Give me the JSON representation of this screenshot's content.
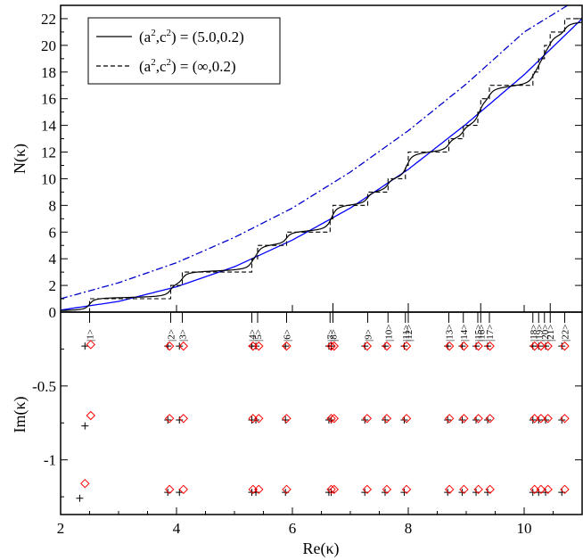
{
  "chart_data": {
    "type": "line",
    "xlabel": "Re(κ)",
    "xlim": [
      2,
      11
    ],
    "x_ticks": [
      2,
      4,
      6,
      8,
      10
    ],
    "x_tick_labels": [
      "2",
      "4",
      "6",
      "8",
      "10"
    ],
    "top_panel": {
      "ylabel": "N(κ)",
      "ylim": [
        0,
        23
      ],
      "y_ticks": [
        0,
        2,
        4,
        6,
        8,
        10,
        12,
        14,
        16,
        18,
        20,
        22
      ],
      "y_tick_labels": [
        "0",
        "2",
        "4",
        "6",
        "8",
        "10",
        "12",
        "14",
        "16",
        "18",
        "20",
        "22"
      ],
      "legend": {
        "position": "top-left",
        "entries": [
          {
            "label_main": "(a",
            "sup1": "2",
            "label_mid": ",c",
            "sup2": "2",
            "label_end": ") = (5.0,0.2)",
            "style": "solid",
            "color": "#000000"
          },
          {
            "label_main": "(a",
            "sup1": "2",
            "label_mid": ",c",
            "sup2": "2",
            "label_end": ") = (∞,0.2)",
            "style": "dashed",
            "color": "#000000"
          }
        ]
      },
      "step_positions": [
        2.5,
        3.9,
        4.1,
        5.3,
        5.4,
        5.9,
        6.65,
        6.7,
        7.3,
        7.65,
        7.95,
        8.0,
        8.7,
        8.95,
        9.2,
        9.25,
        9.4,
        10.15,
        10.25,
        10.35,
        10.45,
        10.7
      ],
      "series": [
        {
          "name": "blue smooth",
          "color": "#0000ff",
          "style": "solid",
          "x": [
            2.0,
            3.0,
            4.0,
            5.0,
            6.0,
            7.0,
            8.0,
            9.0,
            10.0,
            11.0
          ],
          "y": [
            0.15,
            0.8,
            1.9,
            3.4,
            5.4,
            7.8,
            10.7,
            14.1,
            17.8,
            22.0
          ]
        },
        {
          "name": "blue dash-dot",
          "color": "#0000cc",
          "style": "dashdot",
          "x": [
            2.0,
            3.0,
            4.0,
            5.0,
            6.0,
            7.0,
            8.0,
            9.0,
            10.0,
            10.75
          ],
          "y": [
            1.0,
            2.2,
            3.7,
            5.6,
            7.8,
            10.5,
            13.6,
            17.1,
            21.0,
            23.0
          ]
        }
      ]
    },
    "bottom_panel": {
      "ylabel": "Im(κ)",
      "ylim": [
        -1.37,
        0
      ],
      "y_ticks": [
        -0.5,
        -1
      ],
      "y_tick_labels": [
        "-0.5",
        "-1"
      ],
      "state_labels": [
        "|1>",
        "|2>",
        "|3>",
        "|4>",
        "|5>",
        "|6>",
        "|7>",
        "|8>",
        "|9>",
        "|10>",
        "|11>",
        "|12>",
        "|13>",
        "|14>",
        "|15>",
        "|16>",
        "|17>",
        "|18>",
        "|19>",
        "|20>",
        "|21>",
        "|22>"
      ],
      "plus_markers": {
        "color": "#000000",
        "x": [
          2.4,
          3.85,
          4.05,
          5.3,
          5.37,
          5.88,
          6.63,
          6.67,
          7.25,
          7.6,
          7.93,
          8.68,
          8.93,
          9.17,
          9.37,
          10.15,
          10.25,
          10.37,
          10.65
        ],
        "rows": [
          -0.23,
          -0.73,
          -1.22
        ]
      },
      "diamond_markers": {
        "color": "#ff0000",
        "x": [
          2.5,
          3.88,
          4.12,
          5.32,
          5.42,
          5.9,
          6.67,
          6.72,
          7.29,
          7.63,
          7.97,
          8.71,
          8.96,
          9.21,
          9.41,
          10.18,
          10.29,
          10.41,
          10.7
        ],
        "rows": [
          -0.23,
          -0.72,
          -1.2
        ]
      },
      "first_state_offsets": {
        "plus_y": [
          -0.23,
          -0.77,
          -1.26
        ],
        "diamond_y": [
          -0.22,
          -0.7,
          -1.16
        ],
        "plus_x": [
          2.42,
          2.42,
          2.33
        ],
        "diamond_x": [
          2.52,
          2.52,
          2.42
        ]
      }
    }
  }
}
